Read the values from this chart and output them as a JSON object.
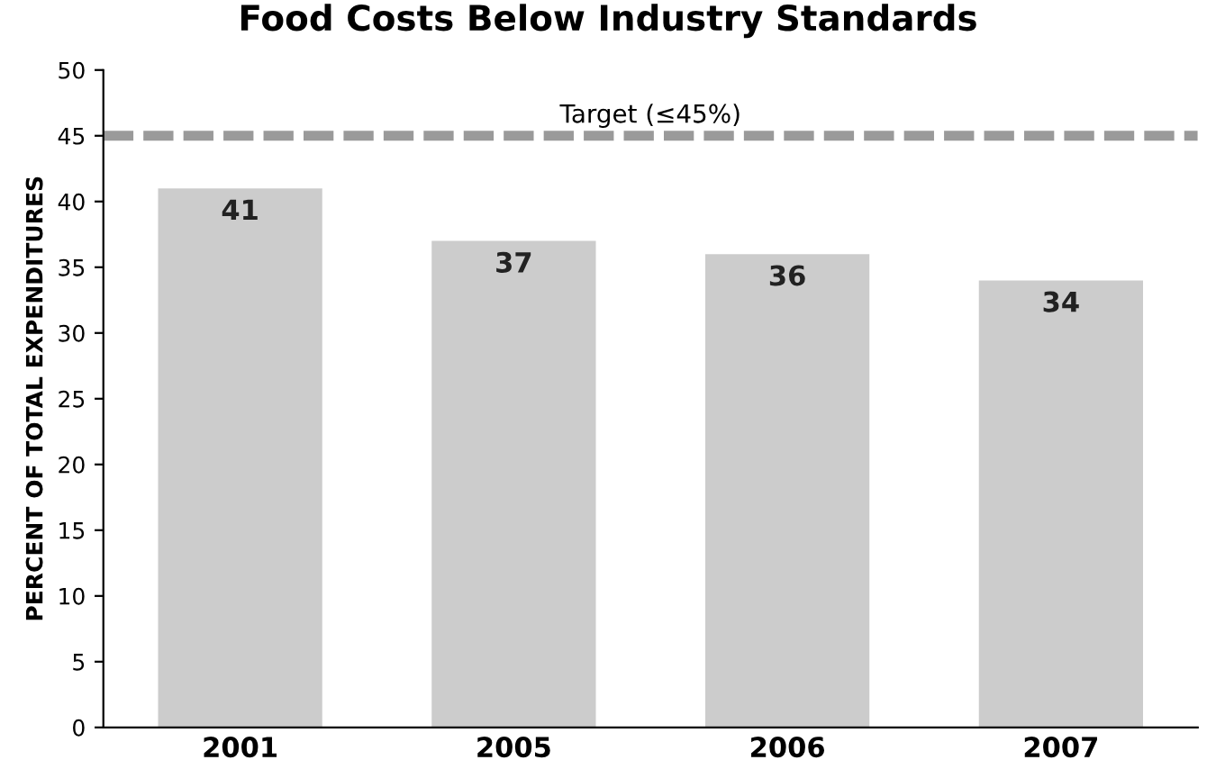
{
  "chart_data": {
    "type": "bar",
    "title": "Food Costs Below Industry Standards",
    "ylabel": "PERCENT OF TOTAL EXPENDITURES",
    "categories": [
      "2001",
      "2005",
      "2006",
      "2007"
    ],
    "values": [
      41,
      37,
      36,
      34
    ],
    "color": "#cccccc",
    "ylim": [
      0,
      50
    ],
    "yticks": [
      0,
      5,
      10,
      15,
      20,
      25,
      30,
      35,
      40,
      45,
      50
    ],
    "ref_lines": [
      {
        "axis": "y",
        "value": 45,
        "label": "Target (≤45%)",
        "color": "#9a9a9a",
        "line_style": "dashed"
      }
    ],
    "data_labels": true,
    "grid": false,
    "legend": false
  }
}
